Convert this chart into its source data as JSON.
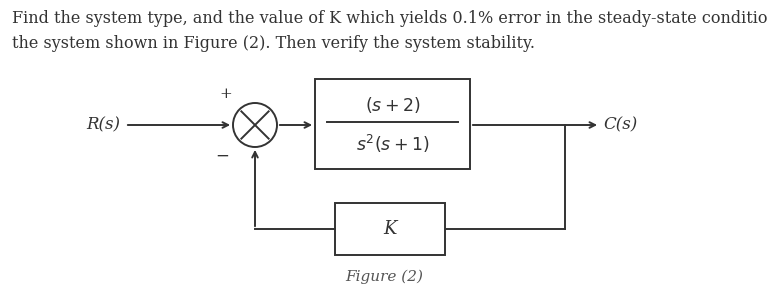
{
  "title_text_line1": "Find the system type, and the value of K which yields 0.1% error in the steady-state condition for",
  "title_text_line2": "the system shown in Figure (2). Then verify the system stability.",
  "title_fontsize": 11.5,
  "title_color": "#333333",
  "figure_label": "Figure (2)",
  "figure_label_color": "#555555",
  "figure_label_fontsize": 11,
  "bg_color": "#ffffff",
  "line_color": "#333333",
  "Rs_label": "R(s)",
  "Cs_label": "C(s)",
  "feedback_label": "K",
  "plus_label": "+",
  "minus_label": "−"
}
